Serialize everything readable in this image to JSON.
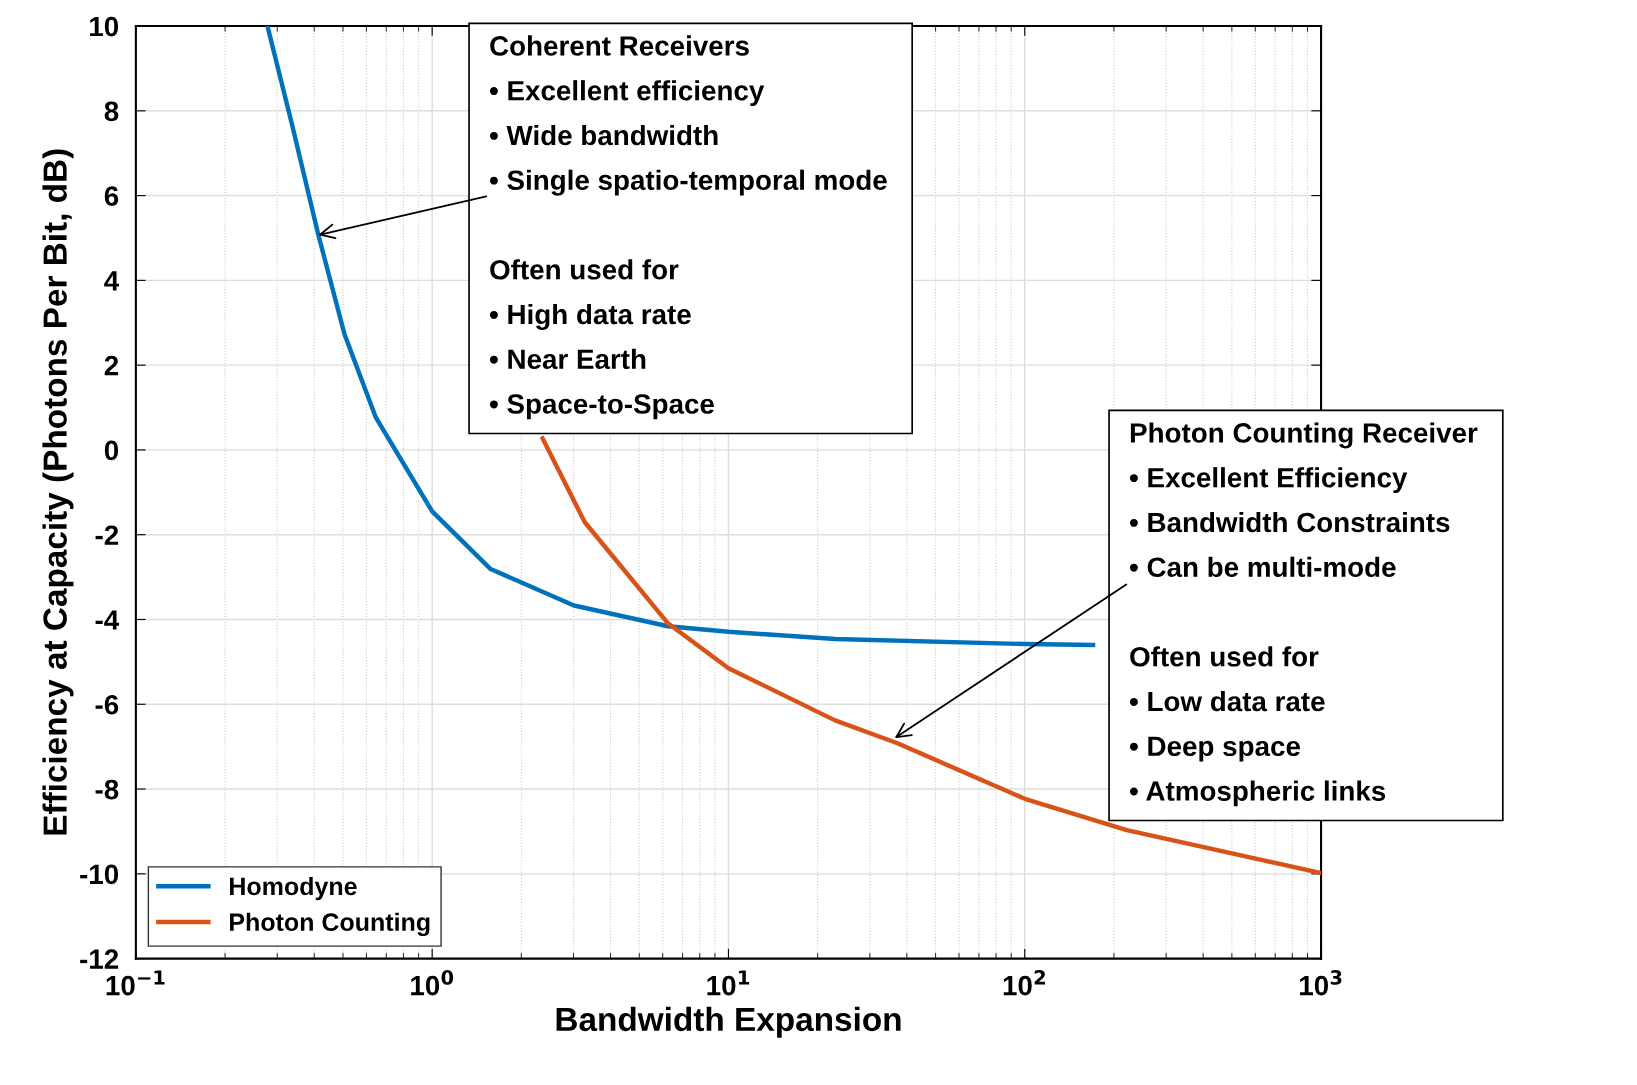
{
  "chart_data": {
    "type": "line",
    "xlabel": "Bandwidth Expansion",
    "ylabel": "Efficiency at Capacity (Photons Per Bit, dB)",
    "log": "x",
    "grid": true,
    "legend": "bottom left",
    "line_style": "solid",
    "marker": "none",
    "xlim": [
      0.1,
      1000
    ],
    "xticks": [
      {
        "value": 0.1,
        "label": "10$^{−1}$"
      },
      {
        "value": 1,
        "label": "10$^{0}$"
      },
      {
        "value": 10,
        "label": "10$^{1}$"
      },
      {
        "value": 100,
        "label": "10$^{2}$"
      },
      {
        "value": 1000,
        "label": "10$^{3}$"
      }
    ],
    "ylim": [
      -12,
      10
    ],
    "yticks": [
      -12,
      -10,
      -8,
      -6,
      -4,
      -2,
      0,
      2,
      4,
      6,
      8,
      10
    ],
    "series": [
      {
        "name": "Homodyne",
        "color": "#0072bd",
        "x": [
          0.278,
          0.337,
          0.413,
          0.506,
          0.646,
          1,
          1.575,
          3.01,
          6.25,
          10,
          22.9,
          100,
          170
        ],
        "values": [
          10,
          7.66,
          5.07,
          2.73,
          0.76,
          -1.45,
          -2.81,
          -3.67,
          -4.16,
          -4.29,
          -4.46,
          -4.58,
          -4.6
        ]
      },
      {
        "name": "Photon Counting",
        "color": "#d95319",
        "x": [
          2.36,
          3.27,
          6.25,
          10,
          22.9,
          37.2,
          100,
          221,
          1000
        ],
        "values": [
          0.27,
          -1.7,
          -4.09,
          -5.15,
          -6.38,
          -6.92,
          -8.23,
          -8.97,
          -9.98
        ]
      }
    ],
    "annotations": [
      "Coherent Receivers",
      "• Excellent efficiency",
      "• Wide bandwidth",
      {
        "text": "• Single spatio-temporal mode",
        "x": 0.413,
        "y": 5.07
      },
      "Often used for",
      "• High data rate",
      "• Near Earth",
      "• Space-to-Space",
      "Photon Counting Receiver",
      "• Excellent Efficiency",
      "• Bandwidth Constraints",
      {
        "text": "• Can be multi-mode",
        "x": 36.4,
        "y": -6.8
      },
      "Often used for",
      "• Low data rate",
      "• Deep space",
      "• Atmospheric links"
    ]
  }
}
